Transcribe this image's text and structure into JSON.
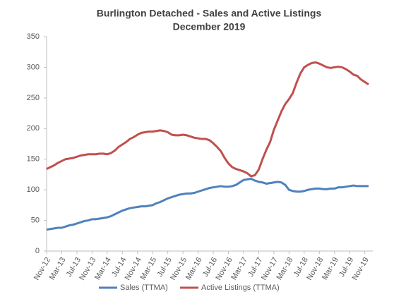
{
  "chart_data": {
    "type": "line",
    "title": "Burlington Detached - Sales and Active Listings",
    "subtitle": "December 2019",
    "categories": [
      "Nov-12",
      null,
      null,
      null,
      "Mar-13",
      null,
      null,
      null,
      "Jul-13",
      null,
      null,
      null,
      "Nov-13",
      null,
      null,
      null,
      "Mar-14",
      null,
      null,
      null,
      "Jul-14",
      null,
      null,
      null,
      "Nov-14",
      null,
      null,
      null,
      "Mar-15",
      null,
      null,
      null,
      "Jul-15",
      null,
      null,
      null,
      "Nov-15",
      null,
      null,
      null,
      "Mar-16",
      null,
      null,
      null,
      "Jul-16",
      null,
      null,
      null,
      "Nov-16",
      null,
      null,
      null,
      "Mar-17",
      null,
      null,
      null,
      "Jul-17",
      null,
      null,
      null,
      "Nov-17",
      null,
      null,
      null,
      "Mar-18",
      null,
      null,
      null,
      "Jul-18",
      null,
      null,
      null,
      "Nov-18",
      null,
      null,
      null,
      "Mar-19",
      null,
      null,
      null,
      "Jul-19",
      null,
      null,
      null,
      "Nov-19",
      null
    ],
    "series": [
      {
        "name": "Sales (TTMA)",
        "color": "#4f81bd",
        "values": [
          35,
          36,
          37,
          38,
          38,
          40,
          42,
          43,
          45,
          47,
          49,
          50,
          52,
          52,
          53,
          54,
          55,
          57,
          60,
          63,
          66,
          68,
          70,
          71,
          72,
          73,
          73,
          74,
          75,
          78,
          80,
          83,
          86,
          88,
          90,
          92,
          93,
          94,
          94,
          95,
          97,
          99,
          101,
          103,
          104,
          105,
          106,
          105,
          105,
          106,
          108,
          112,
          116,
          117,
          118,
          115,
          113,
          112,
          110,
          111,
          112,
          113,
          112,
          108,
          100,
          98,
          97,
          97,
          98,
          100,
          101,
          102,
          102,
          101,
          101,
          102,
          102,
          104,
          104,
          105,
          106,
          107,
          106,
          106,
          106,
          106
        ]
      },
      {
        "name": "Active Listings (TTMA)",
        "color": "#c0504d",
        "values": [
          134,
          137,
          140,
          144,
          147,
          150,
          151,
          152,
          154,
          156,
          157,
          158,
          158,
          158,
          159,
          159,
          158,
          160,
          164,
          170,
          174,
          178,
          183,
          186,
          190,
          193,
          194,
          195,
          195,
          196,
          197,
          196,
          194,
          190,
          189,
          189,
          190,
          189,
          187,
          185,
          184,
          183,
          183,
          181,
          176,
          170,
          163,
          152,
          143,
          137,
          134,
          132,
          130,
          127,
          122,
          124,
          133,
          150,
          165,
          178,
          198,
          213,
          228,
          240,
          248,
          258,
          275,
          290,
          300,
          304,
          307,
          308,
          306,
          303,
          300,
          299,
          300,
          301,
          300,
          297,
          293,
          288,
          286,
          280,
          276,
          272
        ]
      }
    ],
    "ylim": [
      0,
      350
    ],
    "yticks": [
      0,
      50,
      100,
      150,
      200,
      250,
      300,
      350
    ],
    "grid": false,
    "legend": "bottom"
  }
}
